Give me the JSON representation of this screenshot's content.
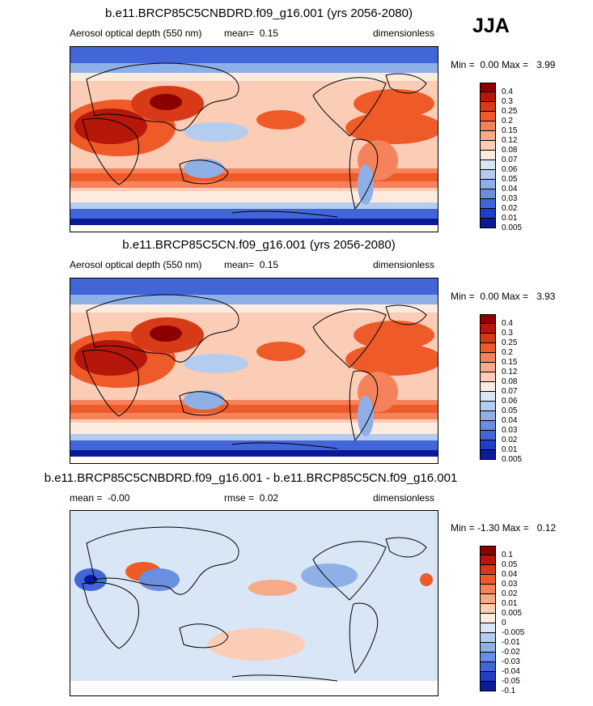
{
  "season": "JJA",
  "chart_data": [
    {
      "type": "heatmap",
      "title": "b.e11.BRCP85C5CNBDRD.f09_g16.001 (yrs 2056-2080)",
      "left_label": "Aerosol optical depth (550 nm)",
      "mean_label": "mean=",
      "mean_value": "0.15",
      "units": "dimensionless",
      "min_label": "Min =",
      "min_value": "0.00",
      "max_label": "Max =",
      "max_value": "3.99",
      "colorbar_levels": [
        "0.4",
        "0.3",
        "0.25",
        "0.2",
        "0.15",
        "0.12",
        "0.08",
        "0.07",
        "0.06",
        "0.05",
        "0.04",
        "0.03",
        "0.02",
        "0.01",
        "0.005"
      ],
      "colors": [
        "#8b0000",
        "#b5180b",
        "#d73a17",
        "#ee5a28",
        "#f5825a",
        "#f8a988",
        "#fbccb6",
        "#fdebe0",
        "#d9e6f6",
        "#b4cdef",
        "#8eb0e7",
        "#6a8ee0",
        "#4266d8",
        "#1f3fc8",
        "#0b1a97"
      ]
    },
    {
      "type": "heatmap",
      "title": "b.e11.BRCP85C5CN.f09_g16.001 (yrs 2056-2080)",
      "left_label": "Aerosol optical depth (550 nm)",
      "mean_label": "mean=",
      "mean_value": "0.15",
      "units": "dimensionless",
      "min_label": "Min =",
      "min_value": "0.00",
      "max_label": "Max =",
      "max_value": "3.93",
      "colorbar_levels": [
        "0.4",
        "0.3",
        "0.25",
        "0.2",
        "0.15",
        "0.12",
        "0.08",
        "0.07",
        "0.06",
        "0.05",
        "0.04",
        "0.03",
        "0.02",
        "0.01",
        "0.005"
      ],
      "colors": [
        "#8b0000",
        "#b5180b",
        "#d73a17",
        "#ee5a28",
        "#f5825a",
        "#f8a988",
        "#fbccb6",
        "#fdebe0",
        "#d9e6f6",
        "#b4cdef",
        "#8eb0e7",
        "#6a8ee0",
        "#4266d8",
        "#1f3fc8",
        "#0b1a97"
      ]
    },
    {
      "type": "heatmap",
      "title": "b.e11.BRCP85C5CNBDRD.f09_g16.001 - b.e11.BRCP85C5CN.f09_g16.001",
      "left_label": "mean =",
      "mean_label": "",
      "mean_value": "-0.00",
      "rmse_label": "rmse =",
      "rmse_value": "0.02",
      "units": "dimensionless",
      "min_label": "Min =",
      "min_value": "-1.30",
      "max_label": "Max =",
      "max_value": "0.12",
      "colorbar_levels": [
        "0.1",
        "0.05",
        "0.04",
        "0.03",
        "0.02",
        "0.01",
        "0.005",
        "0",
        "-0.005",
        "-0.01",
        "-0.02",
        "-0.03",
        "-0.04",
        "-0.05",
        "-0.1"
      ],
      "colors": [
        "#8b0000",
        "#b5180b",
        "#d73a17",
        "#ee5a28",
        "#f5825a",
        "#f8a988",
        "#fbccb6",
        "#fdebe0",
        "#d9e6f6",
        "#b4cdef",
        "#8eb0e7",
        "#6a8ee0",
        "#4266d8",
        "#1f3fc8",
        "#0b1a97"
      ]
    }
  ]
}
